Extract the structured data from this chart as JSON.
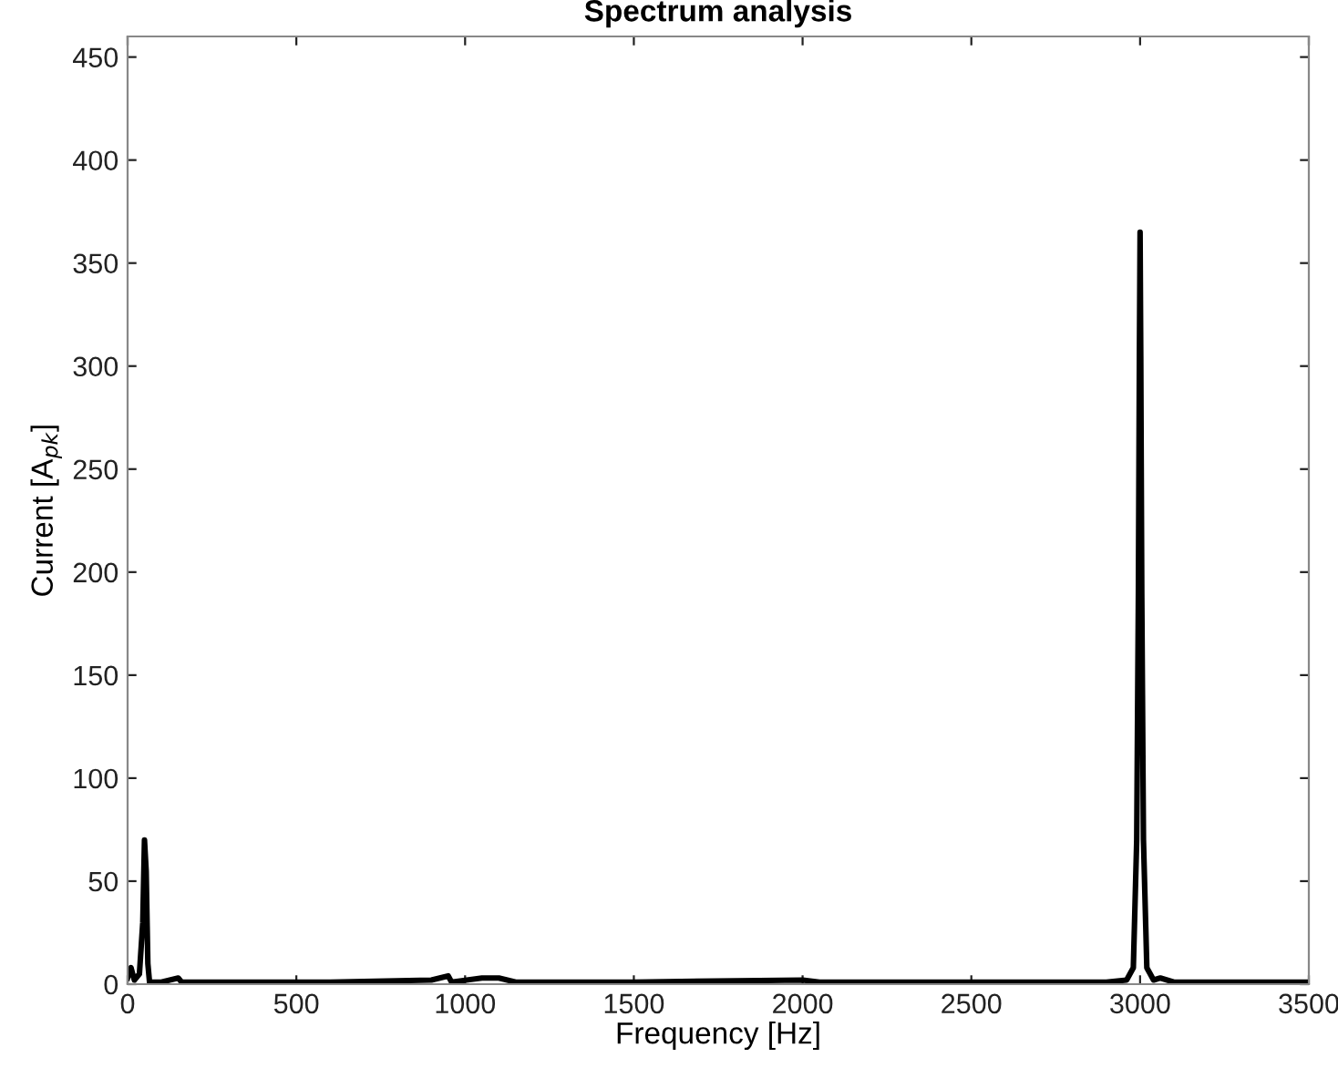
{
  "chart_data": {
    "type": "line",
    "title": "Spectrum analysis",
    "xlabel": "Frequency [Hz]",
    "ylabel": "Current [A$_{pk}$]",
    "xlim": [
      0,
      3500
    ],
    "xticks": [
      0,
      500,
      1000,
      1500,
      2000,
      2500,
      3000,
      3500
    ],
    "ylim": [
      0,
      460
    ],
    "yticks": [
      0,
      50,
      100,
      150,
      200,
      250,
      300,
      350,
      400,
      450
    ],
    "grid": false,
    "legend": false,
    "line_style": "solid",
    "marker": "none",
    "series": [
      {
        "color": "#000000",
        "x": [
          0,
          10,
          20,
          35,
          45,
          50,
          55,
          60,
          65,
          100,
          150,
          160,
          300,
          600,
          900,
          950,
          960,
          1050,
          1100,
          1150,
          1500,
          2000,
          2050,
          2500,
          2900,
          2960,
          2980,
          2990,
          2995,
          2998,
          3000,
          3002,
          3005,
          3010,
          3020,
          3040,
          3060,
          3100,
          3500
        ],
        "values": [
          3,
          8,
          2,
          5,
          30,
          70,
          55,
          10,
          1,
          1,
          3,
          1,
          1,
          1,
          2,
          4,
          1,
          3,
          3,
          1,
          1,
          2,
          1,
          1,
          1,
          2,
          8,
          70,
          190,
          305,
          365,
          305,
          190,
          70,
          8,
          2,
          3,
          1,
          1
        ]
      }
    ]
  }
}
